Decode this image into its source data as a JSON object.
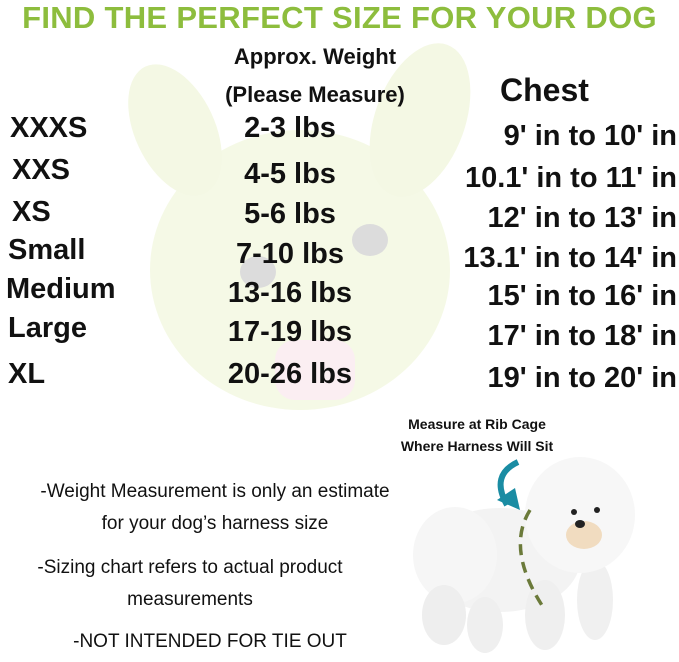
{
  "title": "FIND THE PERFECT SIZE FOR YOUR DOG",
  "headers": {
    "weight_line1": "Approx. Weight",
    "weight_line2": "(Please Measure)",
    "chest": "Chest"
  },
  "rows": [
    {
      "size": "XXXS",
      "weight": "2-3 lbs",
      "chest": "9' in to 10' in"
    },
    {
      "size": "XXS",
      "weight": "4-5 lbs",
      "chest": "10.1' in to 11' in"
    },
    {
      "size": "XS",
      "weight": "5-6 lbs",
      "chest": "12' in to 13' in"
    },
    {
      "size": "Small",
      "weight": "7-10 lbs",
      "chest": "13.1' in to 14' in"
    },
    {
      "size": "Medium",
      "weight": "13-16 lbs",
      "chest": "15' in to 16' in"
    },
    {
      "size": "Large",
      "weight": "17-19 lbs",
      "chest": "17' in to 18' in"
    },
    {
      "size": "XL",
      "weight": "20-26 lbs",
      "chest": "19' in to 20' in"
    }
  ],
  "caption": {
    "line1": "Measure at Rib Cage",
    "line2": "Where Harness Will Sit"
  },
  "notes": {
    "n1_line1": "-Weight Measurement is only an estimate",
    "n1_line2": "for your dog’s harness size",
    "n2_line1": "-Sizing chart refers to actual product",
    "n2_line2": "measurements",
    "n3": "-NOT INTENDED FOR TIE OUT"
  },
  "colors": {
    "title": "#8dbd3d",
    "arrow": "#1a8ca3",
    "dashes": "#6b7a3a"
  }
}
